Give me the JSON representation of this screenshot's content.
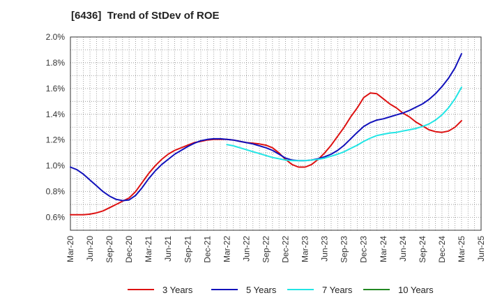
{
  "title": "[6436]  Trend of StDev of ROE",
  "chart_data": {
    "type": "line",
    "title": "[6436]  Trend of StDev of ROE",
    "xlabel": "",
    "ylabel": "",
    "x_ticks": [
      "Mar-20",
      "Jun-20",
      "Sep-20",
      "Dec-20",
      "Mar-21",
      "Jun-21",
      "Sep-21",
      "Dec-21",
      "Mar-22",
      "Jun-22",
      "Sep-22",
      "Dec-22",
      "Mar-23",
      "Jun-23",
      "Sep-23",
      "Dec-23",
      "Mar-24",
      "Jun-24",
      "Sep-24",
      "Dec-24",
      "Mar-25",
      "Jun-25"
    ],
    "y_ticks": [
      "0.6%",
      "0.8%",
      "1.0%",
      "1.2%",
      "1.4%",
      "1.6%",
      "1.8%",
      "2.0%"
    ],
    "ylim": [
      0.5,
      2.0
    ],
    "grid": true,
    "legend_position": "bottom",
    "series": [
      {
        "name": "3 Years",
        "color": "#dd1111",
        "x": [
          "Mar-20",
          "Apr-20",
          "May-20",
          "Jun-20",
          "Jul-20",
          "Aug-20",
          "Sep-20",
          "Oct-20",
          "Nov-20",
          "Dec-20",
          "Jan-21",
          "Feb-21",
          "Mar-21",
          "Apr-21",
          "May-21",
          "Jun-21",
          "Jul-21",
          "Aug-21",
          "Sep-21",
          "Oct-21",
          "Nov-21",
          "Dec-21",
          "Jan-22",
          "Feb-22",
          "Mar-22",
          "Apr-22",
          "May-22",
          "Jun-22",
          "Jul-22",
          "Aug-22",
          "Sep-22",
          "Oct-22",
          "Nov-22",
          "Dec-22",
          "Jan-23",
          "Feb-23",
          "Mar-23",
          "Apr-23",
          "May-23",
          "Jun-23",
          "Jul-23",
          "Aug-23",
          "Sep-23",
          "Oct-23",
          "Nov-23",
          "Dec-23",
          "Jan-24",
          "Feb-24",
          "Mar-24",
          "Apr-24",
          "May-24",
          "Jun-24",
          "Jul-24",
          "Aug-24",
          "Sep-24",
          "Oct-24",
          "Nov-24",
          "Dec-24",
          "Jan-25",
          "Feb-25",
          "Mar-25"
        ],
        "values": [
          0.62,
          0.62,
          0.62,
          0.625,
          0.635,
          0.65,
          0.675,
          0.7,
          0.725,
          0.75,
          0.8,
          0.87,
          0.94,
          1.0,
          1.05,
          1.09,
          1.12,
          1.14,
          1.16,
          1.18,
          1.19,
          1.2,
          1.205,
          1.205,
          1.205,
          1.2,
          1.19,
          1.18,
          1.175,
          1.17,
          1.16,
          1.14,
          1.1,
          1.05,
          1.01,
          0.99,
          0.99,
          1.01,
          1.05,
          1.1,
          1.16,
          1.23,
          1.3,
          1.38,
          1.45,
          1.53,
          1.565,
          1.56,
          1.52,
          1.48,
          1.45,
          1.41,
          1.38,
          1.34,
          1.31,
          1.28,
          1.265,
          1.26,
          1.27,
          1.3,
          1.35
        ]
      },
      {
        "name": "5 Years",
        "color": "#1111bb",
        "x": [
          "Mar-20",
          "Apr-20",
          "May-20",
          "Jun-20",
          "Jul-20",
          "Aug-20",
          "Sep-20",
          "Oct-20",
          "Nov-20",
          "Dec-20",
          "Jan-21",
          "Feb-21",
          "Mar-21",
          "Apr-21",
          "May-21",
          "Jun-21",
          "Jul-21",
          "Aug-21",
          "Sep-21",
          "Oct-21",
          "Nov-21",
          "Dec-21",
          "Jan-22",
          "Feb-22",
          "Mar-22",
          "Apr-22",
          "May-22",
          "Jun-22",
          "Jul-22",
          "Aug-22",
          "Sep-22",
          "Oct-22",
          "Nov-22",
          "Dec-22",
          "Jan-23",
          "Feb-23",
          "Mar-23",
          "Apr-23",
          "May-23",
          "Jun-23",
          "Jul-23",
          "Aug-23",
          "Sep-23",
          "Oct-23",
          "Nov-23",
          "Dec-23",
          "Jan-24",
          "Feb-24",
          "Mar-24",
          "Apr-24",
          "May-24",
          "Jun-24",
          "Jul-24",
          "Aug-24",
          "Sep-24",
          "Oct-24",
          "Nov-24",
          "Dec-24",
          "Jan-25",
          "Feb-25",
          "Mar-25"
        ],
        "values": [
          0.99,
          0.97,
          0.935,
          0.89,
          0.845,
          0.8,
          0.765,
          0.74,
          0.73,
          0.735,
          0.77,
          0.83,
          0.9,
          0.96,
          1.01,
          1.05,
          1.09,
          1.12,
          1.15,
          1.175,
          1.195,
          1.205,
          1.21,
          1.21,
          1.205,
          1.2,
          1.19,
          1.18,
          1.17,
          1.155,
          1.14,
          1.12,
          1.09,
          1.06,
          1.045,
          1.04,
          1.04,
          1.045,
          1.055,
          1.07,
          1.09,
          1.12,
          1.16,
          1.21,
          1.26,
          1.305,
          1.335,
          1.355,
          1.365,
          1.38,
          1.395,
          1.41,
          1.43,
          1.455,
          1.48,
          1.515,
          1.56,
          1.615,
          1.68,
          1.76,
          1.87
        ]
      },
      {
        "name": "7 Years",
        "color": "#22e5e5",
        "x": [
          "Mar-22",
          "Apr-22",
          "May-22",
          "Jun-22",
          "Jul-22",
          "Aug-22",
          "Sep-22",
          "Oct-22",
          "Nov-22",
          "Dec-22",
          "Jan-23",
          "Feb-23",
          "Mar-23",
          "Apr-23",
          "May-23",
          "Jun-23",
          "Jul-23",
          "Aug-23",
          "Sep-23",
          "Oct-23",
          "Nov-23",
          "Dec-23",
          "Jan-24",
          "Feb-24",
          "Mar-24",
          "Apr-24",
          "May-24",
          "Jun-24",
          "Jul-24",
          "Aug-24",
          "Sep-24",
          "Oct-24",
          "Nov-24",
          "Dec-24",
          "Jan-25",
          "Feb-25",
          "Mar-25"
        ],
        "values": [
          1.165,
          1.155,
          1.14,
          1.125,
          1.11,
          1.095,
          1.08,
          1.065,
          1.055,
          1.045,
          1.04,
          1.04,
          1.04,
          1.045,
          1.05,
          1.06,
          1.075,
          1.09,
          1.11,
          1.135,
          1.16,
          1.19,
          1.215,
          1.235,
          1.245,
          1.255,
          1.26,
          1.27,
          1.28,
          1.29,
          1.305,
          1.325,
          1.355,
          1.395,
          1.45,
          1.52,
          1.61
        ]
      },
      {
        "name": "10 Years",
        "color": "#228822",
        "x": [],
        "values": []
      }
    ]
  }
}
